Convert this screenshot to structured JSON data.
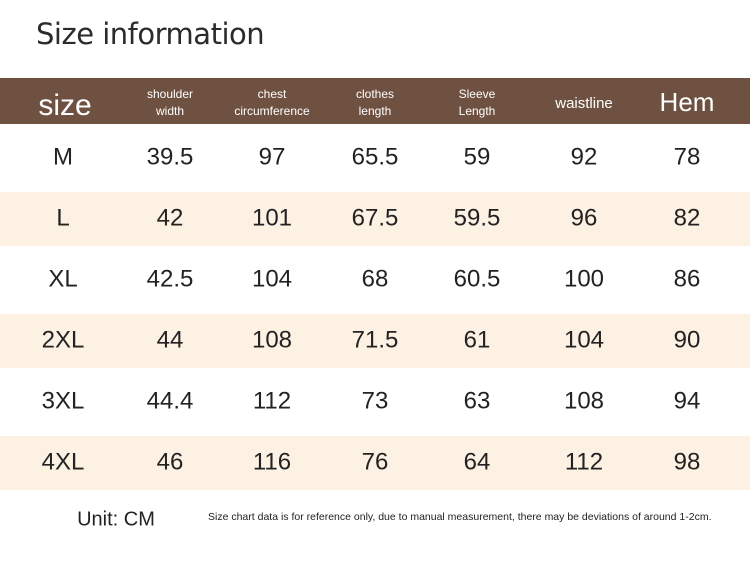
{
  "header": {
    "title": "Size information"
  },
  "table": {
    "columns": [
      [
        "size"
      ],
      [
        "shoulder",
        "width"
      ],
      [
        "chest",
        "circumference"
      ],
      [
        "clothes",
        "length"
      ],
      [
        "Sleeve",
        "Length"
      ],
      [
        "waistline"
      ],
      [
        "Hem"
      ]
    ],
    "rows": [
      [
        "M",
        "39.5",
        "97",
        "65.5",
        "59",
        "92",
        "78"
      ],
      [
        "L",
        "42",
        "101",
        "67.5",
        "59.5",
        "96",
        "82"
      ],
      [
        "XL",
        "42.5",
        "104",
        "68",
        "60.5",
        "100",
        "86"
      ],
      [
        "2XL",
        "44",
        "108",
        "71.5",
        "61",
        "104",
        "90"
      ],
      [
        "3XL",
        "44.4",
        "112",
        "73",
        "63",
        "108",
        "94"
      ],
      [
        "4XL",
        "46",
        "116",
        "76",
        "64",
        "112",
        "98"
      ]
    ]
  },
  "footer": {
    "unit": "Unit: CM",
    "note": "Size chart data is for reference only, due to manual measurement, there may be deviations of around 1-2cm."
  }
}
